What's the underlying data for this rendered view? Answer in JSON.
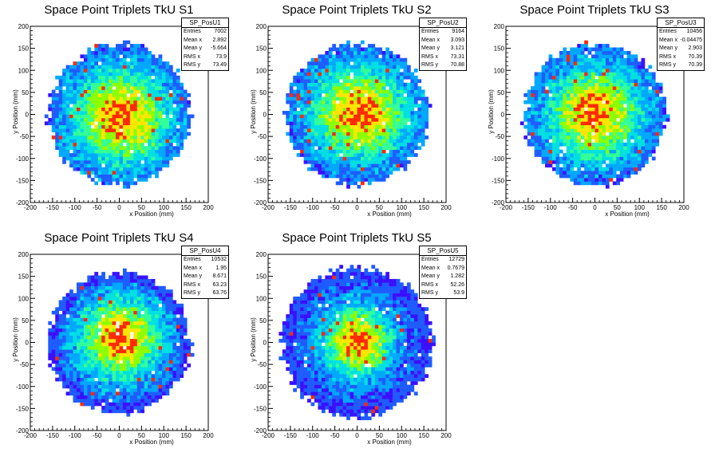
{
  "panels": [
    {
      "title": "Space Point Triplets TkU S1",
      "stats": {
        "name": "SP_PosU1",
        "Entries": "7002",
        "Mean x": "2.892",
        "Mean y": "-5.664",
        "RMS x": "73.9",
        "RMS y": "73.49"
      }
    },
    {
      "title": "Space Point Triplets TkU S2",
      "stats": {
        "name": "SP_PosU2",
        "Entries": "9164",
        "Mean x": "3.093",
        "Mean y": "3.121",
        "RMS x": "73.31",
        "RMS y": "70.88"
      }
    },
    {
      "title": "Space Point Triplets TkU S3",
      "stats": {
        "name": "SP_PosU3",
        "Entries": "10456",
        "Mean x": "-0.04475",
        "Mean y": "2.903",
        "RMS x": "70.39",
        "RMS y": "70.39"
      }
    },
    {
      "title": "Space Point Triplets TkU S4",
      "stats": {
        "name": "SP_PosU4",
        "Entries": "10532",
        "Mean x": "1.95",
        "Mean y": "8.671",
        "RMS x": "63.23",
        "RMS y": "63.76"
      }
    },
    {
      "title": "Space Point Triplets TkU S5",
      "stats": {
        "name": "SP_PosU5",
        "Entries": "12729",
        "Mean x": "0.7679",
        "Mean y": "1.282",
        "RMS x": "52.26",
        "RMS y": "53.9"
      }
    }
  ],
  "chart_data": [
    {
      "type": "heatmap",
      "title": "Space Point Triplets TkU S1",
      "xlabel": "x Position (mm)",
      "ylabel": "y Position (mm)",
      "xlim": [
        -200,
        200
      ],
      "ylim": [
        -200,
        200
      ],
      "xticks": [
        -200,
        -150,
        -100,
        -50,
        0,
        50,
        100,
        150,
        200
      ],
      "yticks": [
        -200,
        -150,
        -100,
        -50,
        0,
        50,
        100,
        150,
        200
      ],
      "radius": 160,
      "mean_x": 2.892,
      "mean_y": -5.664,
      "rms_x": 73.9,
      "rms_y": 73.49,
      "entries": 7002
    },
    {
      "type": "heatmap",
      "title": "Space Point Triplets TkU S2",
      "xlabel": "x Position (mm)",
      "ylabel": "y Position (mm)",
      "xlim": [
        -200,
        200
      ],
      "ylim": [
        -200,
        200
      ],
      "xticks": [
        -200,
        -150,
        -100,
        -50,
        0,
        50,
        100,
        150,
        200
      ],
      "yticks": [
        -200,
        -150,
        -100,
        -50,
        0,
        50,
        100,
        150,
        200
      ],
      "radius": 160,
      "mean_x": 3.093,
      "mean_y": 3.121,
      "rms_x": 73.31,
      "rms_y": 70.88,
      "entries": 9164
    },
    {
      "type": "heatmap",
      "title": "Space Point Triplets TkU S3",
      "xlabel": "x Position (mm)",
      "ylabel": "y Position (mm)",
      "xlim": [
        -200,
        200
      ],
      "ylim": [
        -200,
        200
      ],
      "xticks": [
        -200,
        -150,
        -100,
        -50,
        0,
        50,
        100,
        150,
        200
      ],
      "yticks": [
        -200,
        -150,
        -100,
        -50,
        0,
        50,
        100,
        150,
        200
      ],
      "radius": 160,
      "mean_x": -0.04475,
      "mean_y": 2.903,
      "rms_x": 70.39,
      "rms_y": 70.39,
      "entries": 10456
    },
    {
      "type": "heatmap",
      "title": "Space Point Triplets TkU S4",
      "xlabel": "x Position (mm)",
      "ylabel": "y Position (mm)",
      "xlim": [
        -200,
        200
      ],
      "ylim": [
        -200,
        200
      ],
      "xticks": [
        -200,
        -150,
        -100,
        -50,
        0,
        50,
        100,
        150,
        200
      ],
      "yticks": [
        -200,
        -150,
        -100,
        -50,
        0,
        50,
        100,
        150,
        200
      ],
      "radius": 160,
      "mean_x": 1.95,
      "mean_y": 8.671,
      "rms_x": 63.23,
      "rms_y": 63.76,
      "entries": 10532
    },
    {
      "type": "heatmap",
      "title": "Space Point Triplets TkU S5",
      "xlabel": "x Position (mm)",
      "ylabel": "y Position (mm)",
      "xlim": [
        -200,
        200
      ],
      "ylim": [
        -200,
        200
      ],
      "xticks": [
        -200,
        -150,
        -100,
        -50,
        0,
        50,
        100,
        150,
        200
      ],
      "yticks": [
        -200,
        -150,
        -100,
        -50,
        0,
        50,
        100,
        150,
        200
      ],
      "radius": 170,
      "mean_x": 0.7679,
      "mean_y": 1.282,
      "rms_x": 52.26,
      "rms_y": 53.9,
      "entries": 12729
    }
  ],
  "colors": {
    "palette": [
      "#ffffff",
      "#3b0fff",
      "#1f5cff",
      "#00a8ff",
      "#00e0e0",
      "#33ff99",
      "#8cff00",
      "#ffe600",
      "#ff2a00"
    ],
    "frame": "#000000"
  }
}
